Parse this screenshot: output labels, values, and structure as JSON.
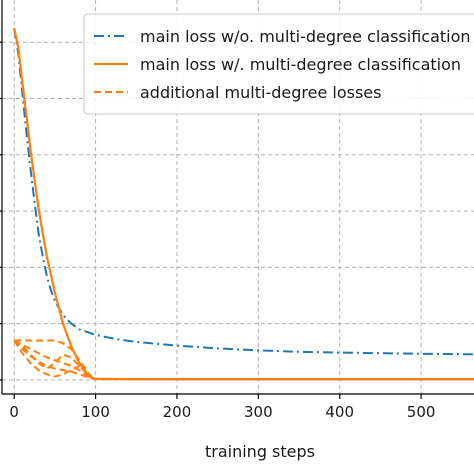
{
  "chart_data": {
    "type": "line",
    "xlabel": "training steps",
    "ylabel": "",
    "title": "",
    "xlim": [
      -15,
      565
    ],
    "ylim": [
      -0.05,
      1.35
    ],
    "x_ticks": [
      0,
      100,
      200,
      300,
      400,
      500
    ],
    "y_tick_values": [
      0.0,
      0.2,
      0.4,
      0.6,
      0.8,
      1.0,
      1.2
    ],
    "grid": true,
    "legend_position": "top-right",
    "series": [
      {
        "name": "main loss w/o. multi-degree classification",
        "color": "#1f77b4",
        "style": "dashdot",
        "x": [
          0,
          5,
          10,
          15,
          20,
          25,
          30,
          35,
          40,
          45,
          50,
          60,
          70,
          80,
          90,
          100,
          125,
          150,
          200,
          250,
          300,
          350,
          400,
          450,
          500,
          565
        ],
        "y": [
          1.25,
          1.16,
          1.02,
          0.88,
          0.75,
          0.63,
          0.52,
          0.44,
          0.37,
          0.32,
          0.28,
          0.23,
          0.2,
          0.18,
          0.17,
          0.16,
          0.145,
          0.135,
          0.122,
          0.112,
          0.105,
          0.1,
          0.097,
          0.095,
          0.093,
          0.091
        ]
      },
      {
        "name": "main loss w/. multi-degree classification",
        "color": "#ff7f0e",
        "style": "solid",
        "x": [
          0,
          5,
          10,
          15,
          20,
          25,
          30,
          35,
          40,
          50,
          60,
          70,
          80,
          90,
          95,
          100,
          150,
          200,
          300,
          400,
          500,
          565
        ],
        "y": [
          1.25,
          1.18,
          1.06,
          0.94,
          0.82,
          0.71,
          0.61,
          0.52,
          0.44,
          0.31,
          0.2,
          0.12,
          0.06,
          0.02,
          0.008,
          0.004,
          0.003,
          0.003,
          0.003,
          0.003,
          0.003,
          0.003
        ]
      },
      {
        "name": "additional multi-degree losses",
        "color": "#ff7f0e",
        "style": "dashed",
        "x": [
          0,
          10,
          20,
          30,
          40,
          50,
          60,
          70,
          80,
          90,
          95,
          100,
          150,
          200,
          300,
          400,
          500,
          565
        ],
        "y": [
          0.14,
          0.14,
          0.14,
          0.14,
          0.14,
          0.14,
          0.13,
          0.11,
          0.07,
          0.03,
          0.01,
          0.004,
          0.003,
          0.003,
          0.003,
          0.003,
          0.003,
          0.003
        ]
      },
      {
        "name": "",
        "color": "#ff7f0e",
        "style": "dashed",
        "x": [
          0,
          10,
          20,
          30,
          40,
          50,
          60,
          70,
          80,
          90,
          95,
          100,
          150,
          565
        ],
        "y": [
          0.14,
          0.125,
          0.11,
          0.095,
          0.08,
          0.07,
          0.06,
          0.05,
          0.035,
          0.015,
          0.006,
          0.003,
          0.003,
          0.003
        ]
      },
      {
        "name": "",
        "color": "#ff7f0e",
        "style": "dashed",
        "x": [
          0,
          10,
          20,
          30,
          40,
          50,
          60,
          70,
          80,
          90,
          95,
          100,
          150,
          565
        ],
        "y": [
          0.14,
          0.11,
          0.085,
          0.065,
          0.05,
          0.04,
          0.035,
          0.03,
          0.02,
          0.01,
          0.005,
          0.003,
          0.003,
          0.003
        ]
      },
      {
        "name": "",
        "color": "#ff7f0e",
        "style": "dashed",
        "x": [
          0,
          10,
          20,
          30,
          40,
          50,
          60,
          70,
          80,
          90,
          95,
          100,
          150,
          565
        ],
        "y": [
          0.14,
          0.095,
          0.06,
          0.035,
          0.02,
          0.012,
          0.02,
          0.035,
          0.05,
          0.02,
          0.006,
          0.003,
          0.003,
          0.003
        ]
      },
      {
        "name": "",
        "color": "#ff7f0e",
        "style": "dashed",
        "x": [
          0,
          10,
          20,
          30,
          40,
          50,
          60,
          70,
          80,
          90,
          95,
          100,
          150,
          565
        ],
        "y": [
          0.14,
          0.12,
          0.09,
          0.06,
          0.04,
          0.06,
          0.09,
          0.08,
          0.05,
          0.02,
          0.006,
          0.003,
          0.003,
          0.003
        ]
      }
    ]
  }
}
